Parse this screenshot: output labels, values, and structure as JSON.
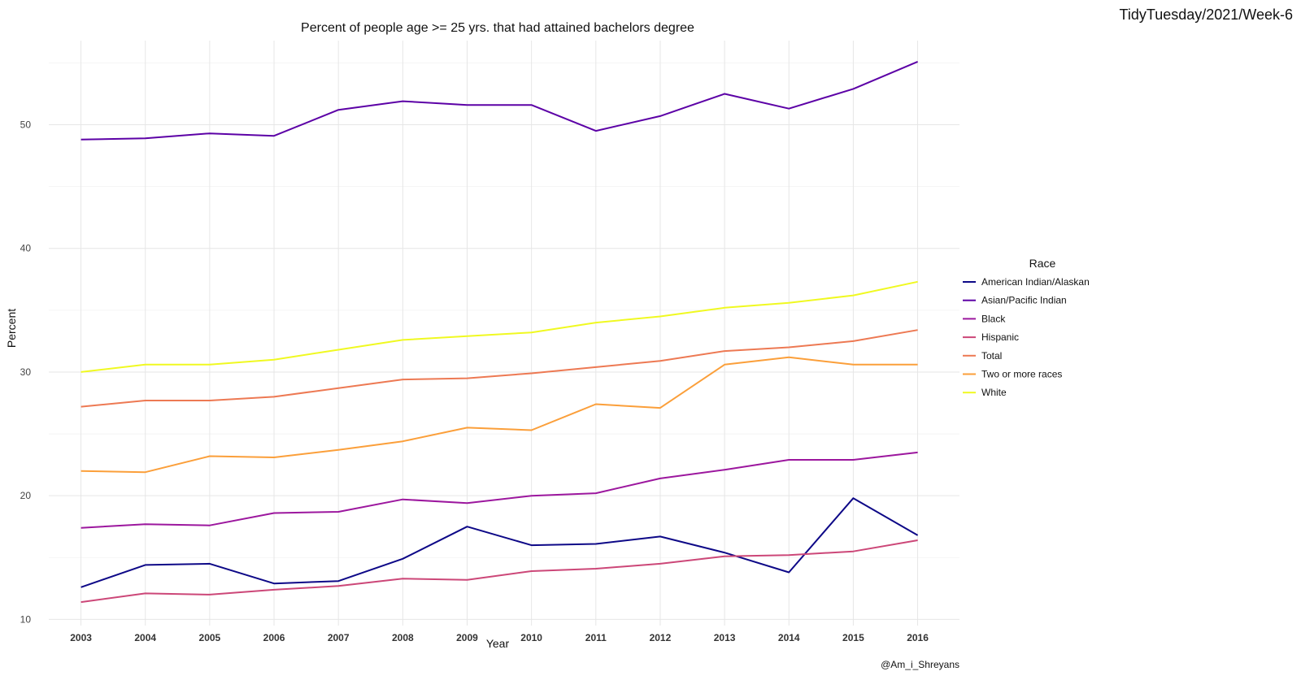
{
  "corner_tag": "TidyTuesday/2021/Week-6",
  "caption": "@Am_i_Shreyans",
  "chart_data": {
    "type": "line",
    "title": "Percent of people age >= 25 yrs. that had attained bachelors degree",
    "xlabel": "Year",
    "ylabel": "Percent",
    "x": [
      2003,
      2004,
      2005,
      2006,
      2007,
      2008,
      2009,
      2010,
      2011,
      2012,
      2013,
      2014,
      2015,
      2016
    ],
    "xlim": [
      2002.5,
      2016.65
    ],
    "ylim": [
      9.5,
      56.8
    ],
    "yticks": [
      10,
      20,
      30,
      40,
      50
    ],
    "grid": true,
    "legend": {
      "title": "Race",
      "position": "right"
    },
    "series": [
      {
        "name": "American Indian/Alaskan",
        "color": "#0d0887",
        "values": [
          12.6,
          14.4,
          14.5,
          12.9,
          13.1,
          14.9,
          17.5,
          16.0,
          16.1,
          16.7,
          15.4,
          13.8,
          19.8,
          16.8
        ]
      },
      {
        "name": "Asian/Pacific Indian",
        "color": "#5c01a6",
        "values": [
          48.8,
          48.9,
          49.3,
          49.1,
          51.2,
          51.9,
          51.6,
          51.6,
          49.5,
          50.7,
          52.5,
          51.3,
          52.9,
          55.1
        ]
      },
      {
        "name": "Black",
        "color": "#9c179e",
        "values": [
          17.4,
          17.7,
          17.6,
          18.6,
          18.7,
          19.7,
          19.4,
          20.0,
          20.2,
          21.4,
          22.1,
          22.9,
          22.9,
          23.5
        ]
      },
      {
        "name": "Hispanic",
        "color": "#cc4778",
        "values": [
          11.4,
          12.1,
          12.0,
          12.4,
          12.7,
          13.3,
          13.2,
          13.9,
          14.1,
          14.5,
          15.1,
          15.2,
          15.5,
          16.4
        ]
      },
      {
        "name": "Total",
        "color": "#ed7953",
        "values": [
          27.2,
          27.7,
          27.7,
          28.0,
          28.7,
          29.4,
          29.5,
          29.9,
          30.4,
          30.9,
          31.7,
          32.0,
          32.5,
          33.4
        ]
      },
      {
        "name": "Two or more races",
        "color": "#fb9f3a",
        "values": [
          22.0,
          21.9,
          23.2,
          23.1,
          23.7,
          24.4,
          25.5,
          25.3,
          27.4,
          27.1,
          30.6,
          31.2,
          30.6,
          30.6
        ]
      },
      {
        "name": "White",
        "color": "#f0f921",
        "values": [
          30.0,
          30.6,
          30.6,
          31.0,
          31.8,
          32.6,
          32.9,
          33.2,
          34.0,
          34.5,
          35.2,
          35.6,
          36.2,
          37.3
        ]
      }
    ]
  }
}
